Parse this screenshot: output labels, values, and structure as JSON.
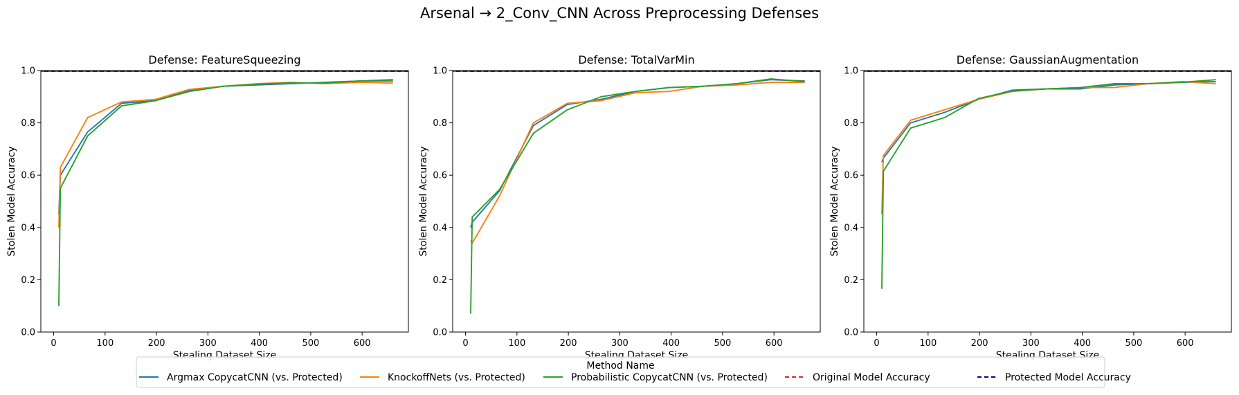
{
  "suptitle": "Arsenal → 2_Conv_CNN Across Preprocessing Defenses",
  "legend": {
    "title": "Method Name",
    "placement": "bottom-center",
    "entries": [
      {
        "label": "Argmax CopycatCNN (vs. Protected)",
        "color": "#1f77b4",
        "style": "solid"
      },
      {
        "label": "KnockoffNets (vs. Protected)",
        "color": "#ff7f0e",
        "style": "solid"
      },
      {
        "label": "Probabilistic CopycatCNN (vs. Protected)",
        "color": "#2ca02c",
        "style": "solid"
      },
      {
        "label": "Original Model Accuracy",
        "color": "#d62728",
        "style": "dashed"
      },
      {
        "label": "Protected Model Accuracy",
        "color": "#00008b",
        "style": "dashed"
      }
    ]
  },
  "chart_data": [
    {
      "type": "line",
      "title": "Defense: FeatureSqueezing",
      "xlabel": "Stealing Dataset Size",
      "ylabel": "Stolen Model Accuracy",
      "xlim": [
        -25,
        690
      ],
      "ylim": [
        0.0,
        1.0
      ],
      "xticks": [
        0,
        100,
        200,
        300,
        400,
        500,
        600
      ],
      "yticks": [
        "0.0",
        "0.2",
        "0.4",
        "0.6",
        "0.8",
        "1.0"
      ],
      "hlines": [
        {
          "name": "Original Model Accuracy",
          "y": 0.997,
          "color": "#d62728"
        },
        {
          "name": "Protected Model Accuracy",
          "y": 0.997,
          "color": "#00008b"
        }
      ],
      "series": [
        {
          "name": "Argmax CopycatCNN (vs. Protected)",
          "color": "#1f77b4",
          "x": [
            10,
            10,
            13,
            66,
            132,
            198,
            264,
            330,
            396,
            462,
            528,
            594,
            660
          ],
          "y": [
            0.45,
            0.45,
            0.6,
            0.765,
            0.875,
            0.885,
            0.925,
            0.94,
            0.945,
            0.95,
            0.955,
            0.96,
            0.965
          ]
        },
        {
          "name": "KnockoffNets (vs. Protected)",
          "color": "#ff7f0e",
          "x": [
            10,
            10,
            13,
            66,
            132,
            198,
            264,
            330,
            396,
            462,
            528,
            594,
            660
          ],
          "y": [
            0.4,
            0.4,
            0.63,
            0.82,
            0.88,
            0.89,
            0.928,
            0.94,
            0.95,
            0.955,
            0.95,
            0.955,
            0.952
          ]
        },
        {
          "name": "Probabilistic CopycatCNN (vs. Protected)",
          "color": "#2ca02c",
          "x": [
            10,
            10,
            13,
            66,
            132,
            198,
            264,
            330,
            396,
            462,
            528,
            594,
            660
          ],
          "y": [
            0.1,
            0.1,
            0.55,
            0.75,
            0.865,
            0.885,
            0.92,
            0.94,
            0.948,
            0.953,
            0.952,
            0.96,
            0.96
          ]
        }
      ]
    },
    {
      "type": "line",
      "title": "Defense: TotalVarMin",
      "xlabel": "Stealing Dataset Size",
      "ylabel": "Stolen Model Accuracy",
      "xlim": [
        -25,
        690
      ],
      "ylim": [
        0.0,
        1.0
      ],
      "xticks": [
        0,
        100,
        200,
        300,
        400,
        500,
        600
      ],
      "yticks": [
        "0.0",
        "0.2",
        "0.4",
        "0.6",
        "0.8",
        "1.0"
      ],
      "hlines": [
        {
          "name": "Original Model Accuracy",
          "y": 0.997,
          "color": "#d62728"
        },
        {
          "name": "Protected Model Accuracy",
          "y": 0.997,
          "color": "#00008b"
        }
      ],
      "series": [
        {
          "name": "Argmax CopycatCNN (vs. Protected)",
          "color": "#1f77b4",
          "x": [
            10,
            10,
            13,
            66,
            132,
            198,
            264,
            330,
            396,
            462,
            528,
            594,
            660
          ],
          "y": [
            0.4,
            0.4,
            0.42,
            0.54,
            0.79,
            0.87,
            0.89,
            0.92,
            0.935,
            0.94,
            0.95,
            0.965,
            0.96
          ]
        },
        {
          "name": "KnockoffNets (vs. Protected)",
          "color": "#ff7f0e",
          "x": [
            10,
            10,
            13,
            66,
            132,
            198,
            264,
            330,
            396,
            462,
            528,
            594,
            660
          ],
          "y": [
            0.35,
            0.35,
            0.34,
            0.52,
            0.8,
            0.875,
            0.885,
            0.915,
            0.92,
            0.94,
            0.945,
            0.955,
            0.955
          ]
        },
        {
          "name": "Probabilistic CopycatCNN (vs. Protected)",
          "color": "#2ca02c",
          "x": [
            10,
            10,
            13,
            66,
            132,
            198,
            264,
            330,
            396,
            462,
            528,
            594,
            660
          ],
          "y": [
            0.07,
            0.07,
            0.44,
            0.545,
            0.76,
            0.85,
            0.9,
            0.92,
            0.935,
            0.94,
            0.95,
            0.968,
            0.958
          ]
        }
      ]
    },
    {
      "type": "line",
      "title": "Defense: GaussianAugmentation",
      "xlabel": "Stealing Dataset Size",
      "ylabel": "Stolen Model Accuracy",
      "xlim": [
        -25,
        690
      ],
      "ylim": [
        0.0,
        1.0
      ],
      "xticks": [
        0,
        100,
        200,
        300,
        400,
        500,
        600
      ],
      "yticks": [
        "0.0",
        "0.2",
        "0.4",
        "0.6",
        "0.8",
        "1.0"
      ],
      "hlines": [
        {
          "name": "Original Model Accuracy",
          "y": 0.997,
          "color": "#d62728"
        },
        {
          "name": "Protected Model Accuracy",
          "y": 0.997,
          "color": "#00008b"
        }
      ],
      "series": [
        {
          "name": "Argmax CopycatCNN (vs. Protected)",
          "color": "#1f77b4",
          "x": [
            10,
            10,
            13,
            66,
            132,
            198,
            264,
            330,
            396,
            462,
            528,
            594,
            660
          ],
          "y": [
            0.65,
            0.65,
            0.665,
            0.8,
            0.84,
            0.89,
            0.925,
            0.93,
            0.93,
            0.945,
            0.95,
            0.955,
            0.958
          ]
        },
        {
          "name": "KnockoffNets (vs. Protected)",
          "color": "#ff7f0e",
          "x": [
            10,
            10,
            13,
            66,
            132,
            198,
            264,
            330,
            396,
            462,
            528,
            594,
            660
          ],
          "y": [
            0.45,
            0.45,
            0.675,
            0.81,
            0.85,
            0.89,
            0.92,
            0.93,
            0.935,
            0.935,
            0.95,
            0.958,
            0.95
          ]
        },
        {
          "name": "Probabilistic CopycatCNN (vs. Protected)",
          "color": "#2ca02c",
          "x": [
            10,
            10,
            13,
            66,
            132,
            198,
            264,
            330,
            396,
            462,
            528,
            594,
            660
          ],
          "y": [
            0.165,
            0.165,
            0.615,
            0.78,
            0.82,
            0.893,
            0.922,
            0.93,
            0.935,
            0.95,
            0.95,
            0.955,
            0.965
          ]
        }
      ]
    }
  ]
}
